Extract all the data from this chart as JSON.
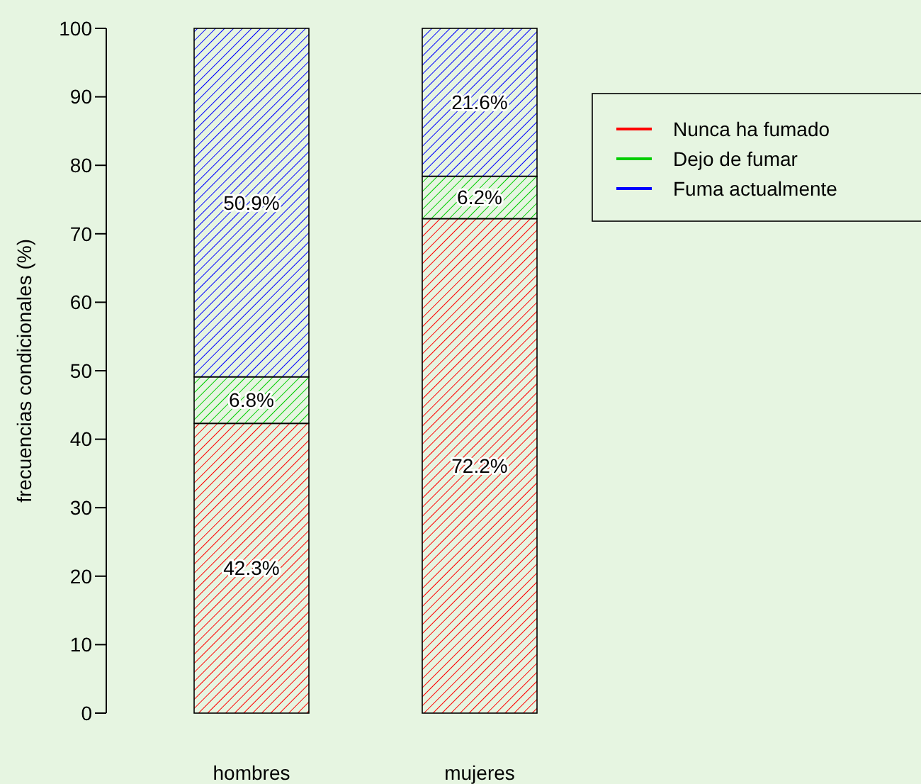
{
  "chart_data": {
    "type": "bar",
    "stacked": true,
    "ylabel": "frecuencias condicionales (%)",
    "categories": [
      "hombres",
      "mujeres"
    ],
    "ylim": [
      0,
      100
    ],
    "yticks": [
      0,
      10,
      20,
      30,
      40,
      50,
      60,
      70,
      80,
      90,
      100
    ],
    "grid": false,
    "legend": "top right",
    "series": [
      {
        "name": "Nunca ha fumado",
        "color": "#ff0000",
        "values": [
          42.3,
          72.2
        ],
        "value_labels": [
          "42.3%",
          "72.2%"
        ]
      },
      {
        "name": "Dejo de fumar",
        "color": "#00cd00",
        "values": [
          6.8,
          6.2
        ],
        "value_labels": [
          "6.8%",
          "6.2%"
        ]
      },
      {
        "name": "Fuma actualmente",
        "color": "#0000ff",
        "values": [
          50.9,
          21.6
        ],
        "value_labels": [
          "50.9%",
          "21.6%"
        ]
      }
    ]
  }
}
